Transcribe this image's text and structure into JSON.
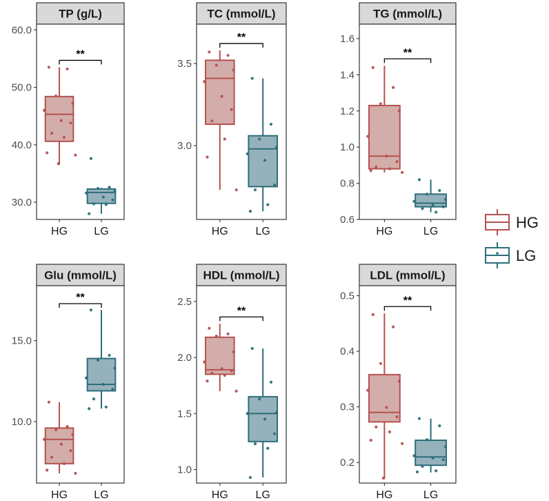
{
  "colors": {
    "HG": "#b5504f",
    "HG_fill": "#b5766f",
    "LG": "#2d6d7a",
    "LG_fill": "#4f7f90",
    "strip_bg": "#d9d9d9",
    "axis": "#333333"
  },
  "legend": {
    "entries": [
      {
        "label": "HG",
        "color_key": "HG"
      },
      {
        "label": "LG",
        "color_key": "LG"
      }
    ],
    "position": "right"
  },
  "chart_data": [
    {
      "type": "box",
      "title": "TP (g/L)",
      "categories": [
        "HG",
        "LG"
      ],
      "ylim": [
        27.0,
        61.0
      ],
      "yticks": [
        30,
        40,
        50,
        60
      ],
      "ytick_labels": [
        "30.0",
        "40.0",
        "50.0",
        "60.0"
      ],
      "significance": "**",
      "boxes": [
        {
          "group": "HG",
          "whisker_low": 36.5,
          "q1": 40.6,
          "median": 45.3,
          "q3": 48.4,
          "whisker_high": 53.5,
          "points": [
            53.5,
            53.2,
            48.5,
            47.2,
            46.0,
            44.2,
            43.8,
            42.0,
            41.3,
            38.6,
            38.2,
            36.7
          ]
        },
        {
          "group": "LG",
          "whisker_low": 28.0,
          "q1": 29.8,
          "median": 31.7,
          "q3": 32.3,
          "whisker_high": 32.5,
          "points": [
            37.6,
            32.6,
            32.4,
            31.9,
            31.6,
            30.9,
            30.4,
            29.7,
            29.6,
            28.0
          ]
        }
      ]
    },
    {
      "type": "box",
      "title": "TC (mmol/L)",
      "categories": [
        "HG",
        "LG"
      ],
      "ylim": [
        2.55,
        3.74
      ],
      "yticks": [
        3.0,
        3.5
      ],
      "ytick_labels": [
        "3.0",
        "3.5"
      ],
      "significance": "**",
      "boxes": [
        {
          "group": "HG",
          "whisker_low": 2.73,
          "q1": 3.13,
          "median": 3.41,
          "q3": 3.52,
          "whisker_high": 3.58,
          "points": [
            3.57,
            3.55,
            3.49,
            3.46,
            3.39,
            3.3,
            3.22,
            3.15,
            3.04,
            2.93,
            2.73
          ]
        },
        {
          "group": "LG",
          "whisker_low": 2.6,
          "q1": 2.75,
          "median": 2.98,
          "q3": 3.06,
          "whisker_high": 3.41,
          "points": [
            3.41,
            3.13,
            3.04,
            2.99,
            2.95,
            2.91,
            2.76,
            2.73,
            2.64,
            2.6
          ]
        }
      ]
    },
    {
      "type": "box",
      "title": "TG (mmol/L)",
      "categories": [
        "HG",
        "LG"
      ],
      "ylim": [
        0.6,
        1.68
      ],
      "yticks": [
        0.6,
        0.8,
        1.0,
        1.2,
        1.4,
        1.6
      ],
      "ytick_labels": [
        "0.6",
        "0.8",
        "1.0",
        "1.2",
        "1.4",
        "1.6"
      ],
      "significance": "**",
      "boxes": [
        {
          "group": "HG",
          "whisker_low": 0.86,
          "q1": 0.88,
          "median": 0.95,
          "q3": 1.23,
          "whisker_high": 1.45,
          "points": [
            1.44,
            1.33,
            1.24,
            1.2,
            1.06,
            0.95,
            0.92,
            0.89,
            0.88,
            0.87,
            0.86
          ]
        },
        {
          "group": "LG",
          "whisker_low": 0.64,
          "q1": 0.67,
          "median": 0.69,
          "q3": 0.74,
          "whisker_high": 0.82,
          "points": [
            0.82,
            0.76,
            0.74,
            0.71,
            0.7,
            0.68,
            0.67,
            0.66,
            0.64
          ]
        }
      ]
    },
    {
      "type": "box",
      "title": "Glu (mmol/L)",
      "categories": [
        "HG",
        "LG"
      ],
      "ylim": [
        6.2,
        18.4
      ],
      "yticks": [
        10.0,
        15.0
      ],
      "ytick_labels": [
        "10.0",
        "15.0"
      ],
      "significance": "**",
      "boxes": [
        {
          "group": "HG",
          "whisker_low": 6.8,
          "q1": 7.4,
          "median": 8.9,
          "q3": 9.6,
          "whisker_high": 11.2,
          "points": [
            11.2,
            9.7,
            9.5,
            9.2,
            8.9,
            8.6,
            8.2,
            7.8,
            7.4,
            7.0,
            6.8
          ]
        },
        {
          "group": "LG",
          "whisker_low": 10.8,
          "q1": 11.9,
          "median": 12.3,
          "q3": 13.9,
          "whisker_high": 16.9,
          "points": [
            16.9,
            14.1,
            13.8,
            13.3,
            12.7,
            12.3,
            12.0,
            11.4,
            10.9,
            10.8
          ]
        }
      ]
    },
    {
      "type": "box",
      "title": "HDL (mmol/L)",
      "categories": [
        "HG",
        "LG"
      ],
      "ylim": [
        0.88,
        2.64
      ],
      "yticks": [
        1.0,
        1.5,
        2.0,
        2.5
      ],
      "ytick_labels": [
        "1.0",
        "1.5",
        "2.0",
        "2.5"
      ],
      "significance": "**",
      "boxes": [
        {
          "group": "HG",
          "whisker_low": 1.7,
          "q1": 1.85,
          "median": 1.89,
          "q3": 2.18,
          "whisker_high": 2.3,
          "points": [
            2.26,
            2.21,
            2.19,
            2.05,
            1.96,
            1.9,
            1.88,
            1.86,
            1.84,
            1.79,
            1.7
          ]
        },
        {
          "group": "LG",
          "whisker_low": 0.93,
          "q1": 1.25,
          "median": 1.5,
          "q3": 1.65,
          "whisker_high": 2.08,
          "points": [
            2.08,
            1.78,
            1.63,
            1.51,
            1.5,
            1.45,
            1.32,
            1.23,
            1.19,
            0.93
          ]
        }
      ]
    },
    {
      "type": "box",
      "title": "LDL (mmol/L)",
      "categories": [
        "HG",
        "LG"
      ],
      "ylim": [
        0.163,
        0.518
      ],
      "yticks": [
        0.2,
        0.3,
        0.4,
        0.5
      ],
      "ytick_labels": [
        "0.2",
        "0.3",
        "0.4",
        "0.5"
      ],
      "significance": "**",
      "boxes": [
        {
          "group": "HG",
          "whisker_low": 0.17,
          "q1": 0.273,
          "median": 0.29,
          "q3": 0.358,
          "whisker_high": 0.468,
          "points": [
            0.466,
            0.444,
            0.378,
            0.346,
            0.33,
            0.299,
            0.282,
            0.264,
            0.255,
            0.24,
            0.234,
            0.172
          ]
        },
        {
          "group": "LG",
          "whisker_low": 0.182,
          "q1": 0.195,
          "median": 0.21,
          "q3": 0.24,
          "whisker_high": 0.279,
          "points": [
            0.279,
            0.266,
            0.241,
            0.228,
            0.212,
            0.208,
            0.205,
            0.193,
            0.185,
            0.183
          ]
        }
      ]
    }
  ]
}
